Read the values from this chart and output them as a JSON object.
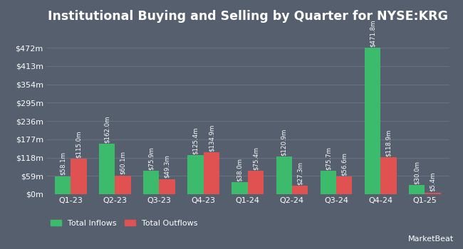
{
  "title": "Institutional Buying and Selling by Quarter for NYSE:KRG",
  "quarters": [
    "Q1-23",
    "Q2-23",
    "Q3-23",
    "Q4-23",
    "Q1-24",
    "Q2-24",
    "Q3-24",
    "Q4-24",
    "Q1-25"
  ],
  "inflows": [
    58.1,
    162.0,
    75.9,
    125.4,
    38.0,
    120.9,
    75.7,
    471.8,
    30.0
  ],
  "outflows": [
    115.0,
    60.1,
    49.3,
    134.9,
    75.4,
    27.3,
    56.6,
    118.9,
    5.4
  ],
  "inflow_labels": [
    "$58.1m",
    "$162.0m",
    "$75.9m",
    "$125.4m",
    "$38.0m",
    "$120.9m",
    "$75.7m",
    "$471.8m",
    "$30.0m"
  ],
  "outflow_labels": [
    "$115.0m",
    "$60.1m",
    "$49.3m",
    "$134.9m",
    "$75.4m",
    "$27.3m",
    "$56.6m",
    "$118.9m",
    "$5.4m"
  ],
  "inflow_color": "#3dbb6c",
  "outflow_color": "#e05252",
  "background_color": "#555f6e",
  "plot_bg_color": "#555f6e",
  "text_color": "#ffffff",
  "grid_color": "#6a7585",
  "ytick_labels": [
    "$0m",
    "$59m",
    "$118m",
    "$177m",
    "$236m",
    "$295m",
    "$354m",
    "$413m",
    "$472m"
  ],
  "ytick_values": [
    0,
    59,
    118,
    177,
    236,
    295,
    354,
    413,
    472
  ],
  "ylim": [
    0,
    530
  ],
  "legend_inflow": "Total Inflows",
  "legend_outflow": "Total Outflows",
  "bar_width": 0.36,
  "title_fontsize": 12.5,
  "tick_fontsize": 8.0,
  "label_fontsize": 6.2,
  "legend_fontsize": 8.0
}
